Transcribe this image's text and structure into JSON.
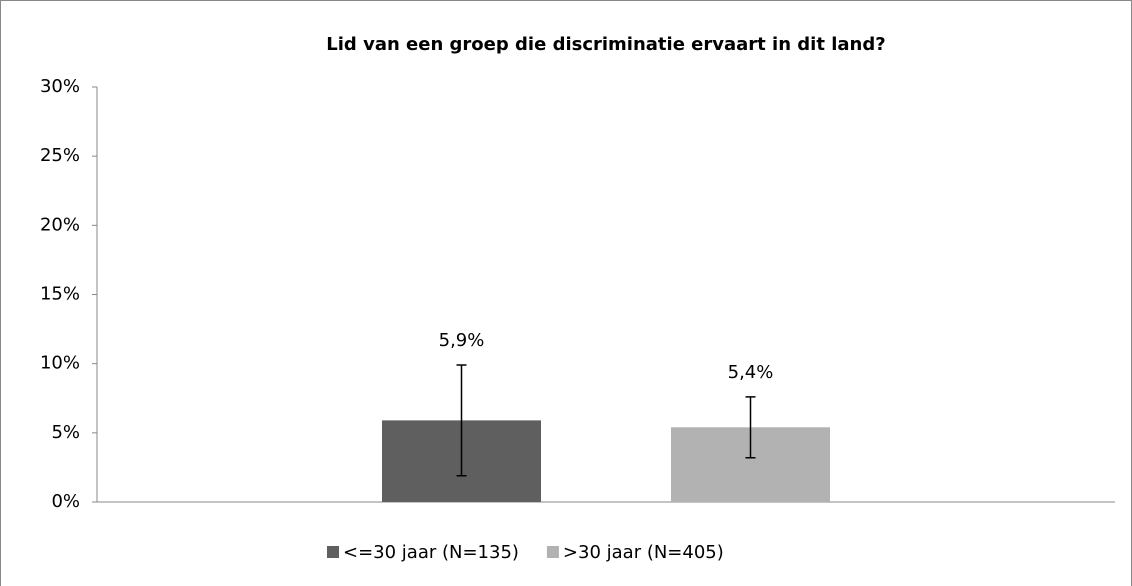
{
  "chart_data": {
    "type": "bar",
    "title": "Lid van een groep die discriminatie ervaart in dit land?",
    "series": [
      {
        "name": "<=30 jaar (N=135)",
        "color": "#5f5f5f",
        "values": [
          5.9
        ],
        "value_labels": [
          "5,9%"
        ],
        "errors": [
          4.0
        ]
      },
      {
        "name": ">30 jaar (N=405)",
        "color": "#b2b2b2",
        "values": [
          5.4
        ],
        "value_labels": [
          "5,4%"
        ],
        "errors": [
          2.2
        ]
      }
    ],
    "ylim": [
      0,
      30
    ],
    "yticks": [
      {
        "value": 0,
        "label": "0%"
      },
      {
        "value": 5,
        "label": "5%"
      },
      {
        "value": 10,
        "label": "10%"
      },
      {
        "value": 15,
        "label": "15%"
      },
      {
        "value": 20,
        "label": "20%"
      },
      {
        "value": 25,
        "label": "25%"
      },
      {
        "value": 30,
        "label": "30%"
      }
    ],
    "legend": "bottom"
  }
}
